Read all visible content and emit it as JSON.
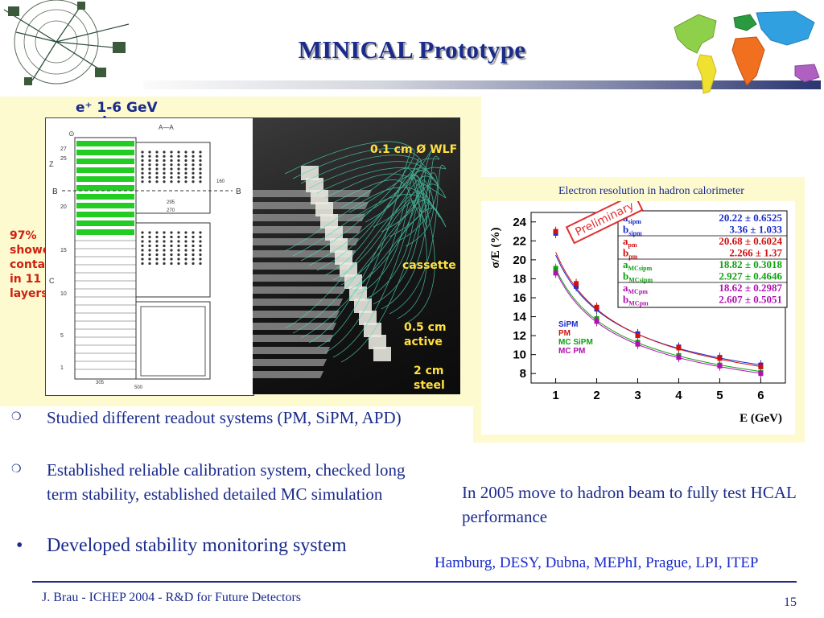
{
  "slide": {
    "title": "MINICAL Prototype",
    "page_number": "15",
    "footer_text": "J. Brau - ICHEP 2004 - R&D for Future Detectors"
  },
  "left_figure": {
    "beam_label": "e⁺ 1-6 GeV",
    "shower_note": [
      "97%",
      "shower",
      "contained",
      "in 11",
      "layers"
    ],
    "photo_labels": {
      "wlf": "0.1 cm Ø WLF",
      "cassette": "cassette",
      "active": [
        "0.5 cm",
        "active"
      ],
      "steel": [
        "2 cm",
        "steel"
      ]
    },
    "drawing_marks": {
      "section": "A—A",
      "b_left": "B",
      "b_right": "B",
      "rows": [
        "27",
        "25",
        "20",
        "15",
        "10",
        "5",
        "1"
      ],
      "z": "Z",
      "c": "C",
      "dims": [
        "295",
        "270",
        "305",
        "500",
        "160"
      ]
    }
  },
  "chart_data": {
    "type": "scatter",
    "title": "Electron resolution in hadron calorimeter",
    "badge": "Preliminary",
    "xlabel": "E (GeV)",
    "ylabel": "σ/E (%)",
    "xlim": [
      0.4,
      6.6
    ],
    "ylim": [
      7,
      25
    ],
    "xticks": [
      1,
      2,
      3,
      4,
      5,
      6
    ],
    "yticks": [
      8,
      10,
      12,
      14,
      16,
      18,
      20,
      22,
      24
    ],
    "fit_params": [
      {
        "sym": "a",
        "sub": "sipm",
        "value": "20.22 ± 0.6525",
        "color": "#1a2bcc"
      },
      {
        "sym": "b",
        "sub": "sipm",
        "value": "3.36 ± 1.033",
        "color": "#1a2bcc"
      },
      {
        "sym": "a",
        "sub": "pm",
        "value": "20.68 ± 0.6024",
        "color": "#d01010"
      },
      {
        "sym": "b",
        "sub": "pm",
        "value": "2.266 ±  1.37",
        "color": "#d01010"
      },
      {
        "sym": "a",
        "sub": "MCsipm",
        "value": "18.82 ± 0.3018",
        "color": "#10a010"
      },
      {
        "sym": "b",
        "sub": "MCsipm",
        "value": "2.927 ± 0.4646",
        "color": "#10a010"
      },
      {
        "sym": "a",
        "sub": "MCpm",
        "value": "18.62 ± 0.2987",
        "color": "#b010b0"
      },
      {
        "sym": "b",
        "sub": "MCpm",
        "value": "2.607 ± 0.5051",
        "color": "#b010b0"
      }
    ],
    "series": [
      {
        "name": "SiPM",
        "color": "#1a2bcc",
        "x": [
          1,
          1.5,
          2,
          3,
          4,
          5,
          6
        ],
        "y": [
          22.8,
          17.2,
          14.8,
          12.2,
          10.8,
          9.7,
          8.9
        ],
        "a": 20.22,
        "b": 3.36
      },
      {
        "name": "PM",
        "color": "#d01010",
        "x": [
          1,
          1.5,
          2,
          3,
          4,
          5,
          6
        ],
        "y": [
          23.0,
          17.5,
          15.0,
          12.0,
          10.7,
          9.6,
          8.7
        ],
        "a": 20.68,
        "b": 2.266
      },
      {
        "name": "MC SiPM",
        "color": "#10a010",
        "x": [
          1,
          2,
          3,
          4,
          5,
          6
        ],
        "y": [
          19.1,
          13.8,
          11.3,
          9.9,
          8.9,
          8.1
        ],
        "a": 18.82,
        "b": 2.927
      },
      {
        "name": "MC PM",
        "color": "#b010b0",
        "x": [
          1,
          2,
          3,
          4,
          5,
          6
        ],
        "y": [
          18.6,
          13.5,
          11.1,
          9.7,
          8.8,
          8.0
        ],
        "a": 18.62,
        "b": 2.607
      }
    ],
    "legend_position": "lower-left"
  },
  "bullets": [
    {
      "marker": "❍",
      "text": "Studied different readout systems (PM, SiPM, APD)"
    },
    {
      "marker": "❍",
      "text": "Established reliable calibration system, checked long term stability, established detailed MC simulation"
    },
    {
      "marker": "•",
      "text": "Developed stability monitoring system"
    }
  ],
  "note": "In 2005 move to hadron beam to fully test HCAL performance",
  "institutes": "Hamburg, DESY, Dubna, MEPhI, Prague, LPI, ITEP"
}
